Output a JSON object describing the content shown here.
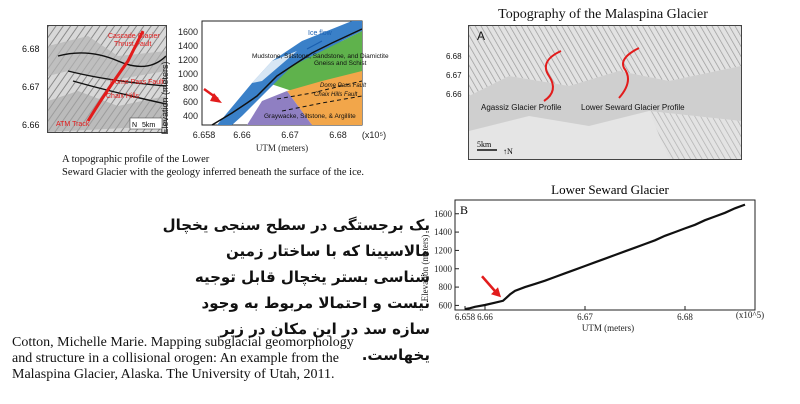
{
  "map_small": {
    "lat_ticks": [
      "6.68",
      "6.67",
      "6.66"
    ],
    "labels": {
      "cascade": "Cascade Glacier",
      "thrust": "Thrust Fault",
      "dome": "Dome Pass Fault",
      "chaix": "Chaix Hills",
      "atm": "ATM Track"
    },
    "scale": "5km",
    "north": "N"
  },
  "geo_profile": {
    "y_ticks": [
      "1600",
      "1400",
      "1200",
      "1000",
      "800",
      "600",
      "400"
    ],
    "x_ticks": [
      "6.658",
      "6.66",
      "6.67",
      "6.68"
    ],
    "xlabel": "UTM (meters)",
    "ylabel": "Elevation (meters)",
    "x_mult": "(x10⁵)",
    "labels": {
      "ice": "Ice flow",
      "mudstone": "Mudstone, Siltstone, Sandstone, and Diamictite",
      "gneiss": "Gneiss and Schist",
      "dome": "Dome Pass Fault",
      "chaix": "Chaix Hills Fault",
      "graywacke": "Graywacke, Siltstone, & Argillite"
    }
  },
  "caption": {
    "line1": "A topographic profile  of the Lower",
    "line2": "Seward Glacier with the geology inferred beneath the surface of the ice."
  },
  "topo": {
    "title": "Topography of the Malaspina Glacier",
    "panel": "A",
    "lat_ticks": [
      "6.68",
      "6.67",
      "6.66"
    ],
    "agassiz": "Agassiz Glacier Profile",
    "seward": "Lower Seward Glacier Profile",
    "scale": "5km",
    "north": "N"
  },
  "farsi": {
    "line1": "یک برجستگی در سطح سنجی یخچال مالاسپینا که با ساختار زمین",
    "line2": "شناسی بستر یخچال قابل توجیه نیست و احتمالا مربوط به وجود",
    "line3": "سازه سد در این مکان در زیر یخهاست."
  },
  "citation": {
    "line1": "Cotton, Michelle Marie. Mapping subglacial geomorphology",
    "line2": "and structure in a collisional orogen: An example from the",
    "line3": "Malaspina Glacier, Alaska. The University of Utah, 2011."
  },
  "chart_data": {
    "type": "line",
    "title": "Lower Seward Glacier",
    "panel_label": "B",
    "xlabel": "UTM (meters)",
    "ylabel": "Elevation (meters)",
    "x_mult": "(x10^5)",
    "xlim": [
      6.657,
      6.687
    ],
    "ylim": [
      550,
      1750
    ],
    "x_ticks": [
      6.658,
      6.66,
      6.67,
      6.68
    ],
    "x_tick_labels": [
      "6.658",
      "6.66",
      "6.67",
      "6.68"
    ],
    "y_ticks": [
      600,
      800,
      1000,
      1200,
      1400,
      1600
    ],
    "series": [
      {
        "x": [
          6.658,
          6.6585,
          6.659,
          6.66,
          6.661,
          6.6618,
          6.6622,
          6.6625,
          6.663,
          6.664,
          6.665,
          6.666,
          6.667,
          6.668,
          6.669,
          6.67,
          6.671,
          6.672,
          6.673,
          6.674,
          6.675,
          6.676,
          6.677,
          6.678,
          6.679,
          6.68,
          6.681,
          6.682,
          6.683,
          6.684,
          6.685,
          6.686
        ],
        "y": [
          560,
          570,
          585,
          605,
          630,
          650,
          690,
          720,
          760,
          800,
          835,
          870,
          910,
          950,
          990,
          1030,
          1070,
          1110,
          1150,
          1190,
          1230,
          1270,
          1310,
          1360,
          1400,
          1440,
          1480,
          1530,
          1570,
          1610,
          1660,
          1700
        ]
      }
    ],
    "annotation": "red arrow pointing to bend near 6.662"
  }
}
